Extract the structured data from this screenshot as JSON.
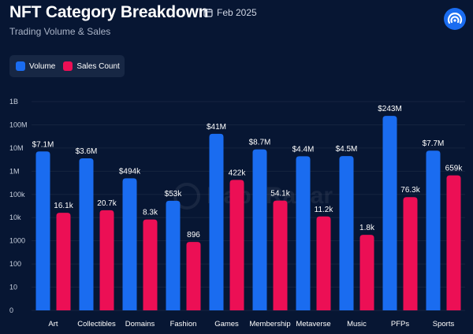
{
  "header": {
    "title": "NFT Category Breakdown",
    "date": "Feb 2025",
    "subtitle": "Trading Volume & Sales"
  },
  "watermark": {
    "text": "DappRadar"
  },
  "colors": {
    "volume": "#1a6cf0",
    "sales": "#ec0f55",
    "background": "#071633"
  },
  "chart_data": {
    "type": "bar",
    "scale": "log",
    "title": "NFT Category Breakdown",
    "subtitle": "Trading Volume & Sales",
    "legend": [
      "Volume",
      "Sales Count"
    ],
    "legend_position": "top-left",
    "categories": [
      "Art",
      "Collectibles",
      "Domains",
      "Fashion",
      "Games",
      "Membership",
      "Metaverse",
      "Music",
      "PFPs",
      "Sports"
    ],
    "y_ticks": [
      {
        "value": 1,
        "label": "0"
      },
      {
        "value": 10,
        "label": "10"
      },
      {
        "value": 100,
        "label": "100"
      },
      {
        "value": 1000,
        "label": "1000"
      },
      {
        "value": 10000,
        "label": "10k"
      },
      {
        "value": 100000,
        "label": "100k"
      },
      {
        "value": 1000000,
        "label": "1M"
      },
      {
        "value": 10000000,
        "label": "10M"
      },
      {
        "value": 100000000,
        "label": "100M"
      },
      {
        "value": 1000000000,
        "label": "1B"
      }
    ],
    "ylim": [
      1,
      1000000000
    ],
    "series": [
      {
        "name": "Volume",
        "values": [
          7100000,
          3600000,
          494000,
          53000,
          41000000,
          8700000,
          4400000,
          4500000,
          243000000,
          7700000
        ],
        "labels": [
          "$7.1M",
          "$3.6M",
          "$494k",
          "$53k",
          "$41M",
          "$8.7M",
          "$4.4M",
          "$4.5M",
          "$243M",
          "$7.7M"
        ]
      },
      {
        "name": "Sales Count",
        "values": [
          16100,
          20700,
          8300,
          896,
          422000,
          54100,
          11200,
          1800,
          76300,
          659000
        ],
        "labels": [
          "16.1k",
          "20.7k",
          "8.3k",
          "896",
          "422k",
          "54.1k",
          "11.2k",
          "1.8k",
          "76.3k",
          "659k"
        ]
      }
    ]
  }
}
